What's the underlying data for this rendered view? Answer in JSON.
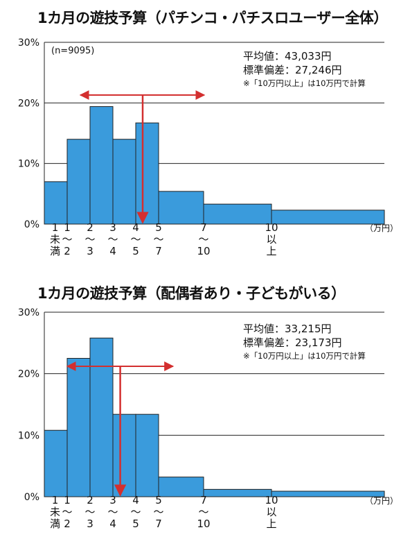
{
  "chart_data": [
    {
      "type": "bar",
      "title": "1カ月の遊技予算（パチンコ・パチスロユーザー全体）",
      "sample_note": "(n=9095)",
      "stats": {
        "mean": "平均値：43,033円",
        "sd": "標準偏差：27,246円",
        "note": "※「10万円以上」は10万円で計算"
      },
      "unit_label": "（万円）",
      "y_ticks": [
        "0%",
        "10%",
        "20%",
        "30%"
      ],
      "ylim": [
        0,
        30
      ],
      "bin_edges": [
        0,
        1,
        2,
        3,
        4,
        5,
        7,
        10,
        15
      ],
      "edge_labels": [
        {
          "pos": 0.5,
          "lines": [
            "1",
            "未",
            "満"
          ]
        },
        {
          "pos": 1,
          "lines": [
            "1",
            "〜",
            "2"
          ]
        },
        {
          "pos": 2,
          "lines": [
            "2",
            "〜",
            "3"
          ]
        },
        {
          "pos": 3,
          "lines": [
            "3",
            "〜",
            "4"
          ]
        },
        {
          "pos": 4,
          "lines": [
            "4",
            "〜",
            "5"
          ]
        },
        {
          "pos": 5,
          "lines": [
            "5",
            "〜",
            "7"
          ]
        },
        {
          "pos": 7,
          "lines": [
            "7",
            "〜",
            "10"
          ]
        },
        {
          "pos": 10,
          "lines": [
            "10",
            "以",
            "上"
          ]
        }
      ],
      "values": [
        7.0,
        14.0,
        19.4,
        14.0,
        16.7,
        5.4,
        3.3,
        2.3
      ],
      "mean_value": 4.3033,
      "sd_range": [
        1.5787,
        7.0279
      ],
      "colors": {
        "bar": "#3a9bdc",
        "arrow": "#d32f2f"
      }
    },
    {
      "type": "bar",
      "title": "1カ月の遊技予算（配偶者あり・子どもがいる）",
      "stats": {
        "mean": "平均値：33,215円",
        "sd": "標準偏差：23,173円",
        "note": "※「10万円以上」は10万円で計算"
      },
      "unit_label": "（万円）",
      "y_ticks": [
        "0%",
        "10%",
        "20%",
        "30%"
      ],
      "ylim": [
        0,
        30
      ],
      "bin_edges": [
        0,
        1,
        2,
        3,
        4,
        5,
        7,
        10,
        15
      ],
      "edge_labels": [
        {
          "pos": 0.5,
          "lines": [
            "1",
            "未",
            "満"
          ]
        },
        {
          "pos": 1,
          "lines": [
            "1",
            "〜",
            "2"
          ]
        },
        {
          "pos": 2,
          "lines": [
            "2",
            "〜",
            "3"
          ]
        },
        {
          "pos": 3,
          "lines": [
            "3",
            "〜",
            "4"
          ]
        },
        {
          "pos": 4,
          "lines": [
            "4",
            "〜",
            "5"
          ]
        },
        {
          "pos": 5,
          "lines": [
            "5",
            "〜",
            "7"
          ]
        },
        {
          "pos": 7,
          "lines": [
            "7",
            "〜",
            "10"
          ]
        },
        {
          "pos": 10,
          "lines": [
            "10",
            "以",
            "上"
          ]
        }
      ],
      "values": [
        10.8,
        22.5,
        25.8,
        13.4,
        13.4,
        3.2,
        1.2,
        0.9
      ],
      "mean_value": 3.3215,
      "sd_range": [
        1.0042,
        5.6388
      ],
      "colors": {
        "bar": "#3a9bdc",
        "arrow": "#d32f2f"
      }
    }
  ]
}
